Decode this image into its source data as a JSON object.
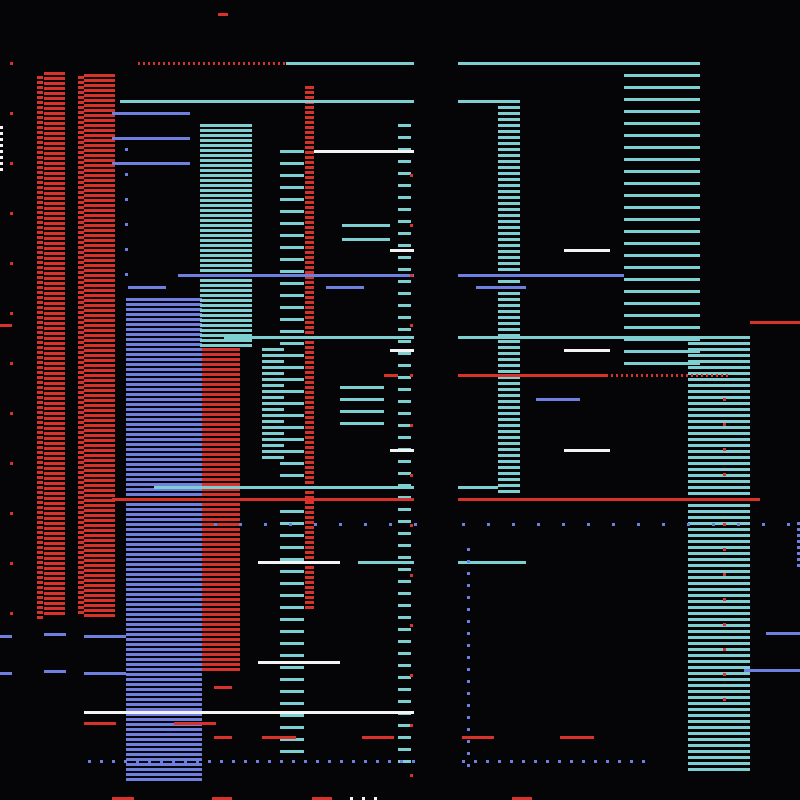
{
  "palette": {
    "background": "#050508",
    "red": "#d8322a",
    "cyan": "#7ecfd2",
    "blue": "#6f7fe0",
    "white": "#f4f4f4"
  },
  "description_label": ""
}
